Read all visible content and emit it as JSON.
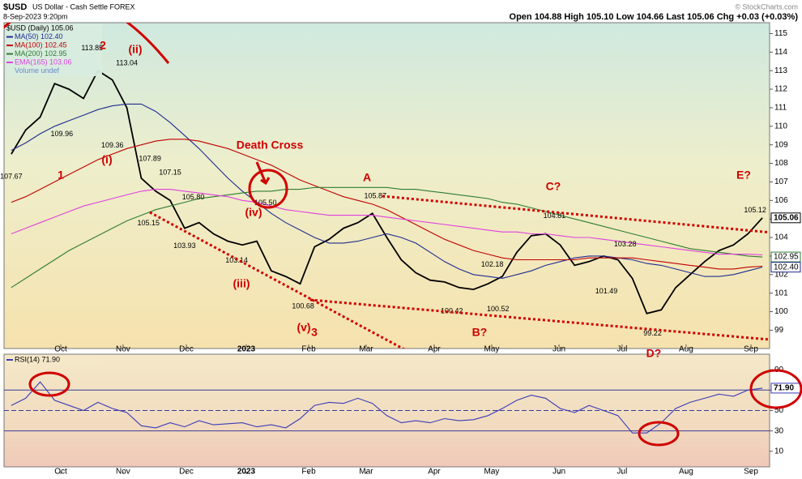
{
  "header": {
    "symbol": "$USD",
    "name": "US Dollar - Cash Settle FOREX",
    "date": "8-Sep-2023 9:20pm",
    "quote": "Open 104.88  High 105.10  Low 104.66  Last 105.06  Chg +0.03 (+0.03%)",
    "credit": "© StockCharts.com"
  },
  "chart_data": [
    {
      "type": "line",
      "panel": "price",
      "x": [
        0,
        1,
        2,
        3,
        4,
        5,
        6,
        7,
        8,
        9,
        10,
        11,
        12,
        13,
        14,
        15,
        16,
        17,
        18,
        19,
        20,
        21,
        22,
        23,
        24,
        25,
        26,
        27,
        28,
        29,
        30,
        31,
        32,
        33,
        34,
        35,
        36,
        37,
        38,
        39,
        40,
        41,
        42,
        43,
        44,
        45,
        46,
        47,
        48,
        49,
        50,
        51,
        52
      ],
      "xlim": [
        -0.5,
        52.5
      ],
      "xticks": [
        {
          "value": 3.43,
          "label": "Oct"
        },
        {
          "value": 7.74,
          "label": "Nov"
        },
        {
          "value": 12.12,
          "label": "Dec"
        },
        {
          "value": 16.27,
          "label": "2023"
        },
        {
          "value": 20.59,
          "label": "Feb"
        },
        {
          "value": 24.57,
          "label": "Mar"
        },
        {
          "value": 29.28,
          "label": "Apr"
        },
        {
          "value": 33.26,
          "label": "May"
        },
        {
          "value": 37.92,
          "label": "Jun"
        },
        {
          "value": 42.29,
          "label": "Jul"
        },
        {
          "value": 46.72,
          "label": "Aug"
        },
        {
          "value": 51.21,
          "label": "Sep"
        }
      ],
      "ylim": [
        98.1,
        115.5
      ],
      "yticks": [
        99,
        100,
        101,
        102,
        103,
        104,
        105,
        106,
        107,
        108,
        109,
        110,
        111,
        112,
        113,
        114,
        115
      ],
      "series": [
        {
          "name": "$USD (Daily) 105.06",
          "color": "#000000",
          "values": [
            108.5,
            109.8,
            110.5,
            112.3,
            112.0,
            111.5,
            113.0,
            112.5,
            111.0,
            107.2,
            106.5,
            106.0,
            104.5,
            104.8,
            104.2,
            103.8,
            103.6,
            103.8,
            102.2,
            101.9,
            101.5,
            103.5,
            103.9,
            104.5,
            104.8,
            105.3,
            104.0,
            102.8,
            102.1,
            101.7,
            101.6,
            101.3,
            101.2,
            101.5,
            101.9,
            103.2,
            104.1,
            104.2,
            103.6,
            102.5,
            102.7,
            103.0,
            102.8,
            101.8,
            99.9,
            100.1,
            101.3,
            102.0,
            102.7,
            103.3,
            103.6,
            104.2,
            105.06
          ]
        },
        {
          "name": "MA(50) 102.40",
          "color": "#1f2c8f",
          "values": [
            108.7,
            109.1,
            109.6,
            110.0,
            110.3,
            110.6,
            110.9,
            111.1,
            111.2,
            111.2,
            110.8,
            110.2,
            109.5,
            108.8,
            108.0,
            107.2,
            106.5,
            105.9,
            105.3,
            104.8,
            104.4,
            104.0,
            103.7,
            103.7,
            103.8,
            104.0,
            104.2,
            104.0,
            103.7,
            103.2,
            102.7,
            102.3,
            102.0,
            101.9,
            101.8,
            102.0,
            102.2,
            102.5,
            102.7,
            102.9,
            103.0,
            103.0,
            102.9,
            102.8,
            102.6,
            102.5,
            102.3,
            102.1,
            101.9,
            101.9,
            102.0,
            102.2,
            102.4
          ]
        },
        {
          "name": "MA(100) 102.45",
          "color": "#c00000",
          "values": [
            105.9,
            106.2,
            106.6,
            107.0,
            107.4,
            107.8,
            108.2,
            108.5,
            108.8,
            109.0,
            109.2,
            109.3,
            109.3,
            109.2,
            109.0,
            108.8,
            108.5,
            108.2,
            107.9,
            107.5,
            107.1,
            106.8,
            106.5,
            106.2,
            106.0,
            105.8,
            105.5,
            105.1,
            104.7,
            104.3,
            103.9,
            103.6,
            103.3,
            103.1,
            102.9,
            102.8,
            102.8,
            102.8,
            102.8,
            102.8,
            102.9,
            102.9,
            102.9,
            102.9,
            102.8,
            102.7,
            102.6,
            102.5,
            102.4,
            102.3,
            102.3,
            102.4,
            102.45
          ]
        },
        {
          "name": "MA(200) 102.95",
          "color": "#2e7d32",
          "values": [
            101.3,
            101.8,
            102.3,
            102.8,
            103.3,
            103.7,
            104.1,
            104.5,
            104.9,
            105.2,
            105.5,
            105.7,
            105.9,
            106.1,
            106.2,
            106.3,
            106.4,
            106.5,
            106.5,
            106.6,
            106.6,
            106.7,
            106.7,
            106.7,
            106.7,
            106.7,
            106.7,
            106.6,
            106.6,
            106.5,
            106.4,
            106.3,
            106.2,
            106.1,
            105.9,
            105.8,
            105.6,
            105.4,
            105.2,
            105.0,
            104.8,
            104.6,
            104.4,
            104.2,
            104.0,
            103.8,
            103.6,
            103.4,
            103.3,
            103.2,
            103.1,
            103.0,
            102.95
          ]
        },
        {
          "name": "EMA(165) 103.06",
          "color": "#e040e0",
          "values": [
            104.2,
            104.5,
            104.8,
            105.1,
            105.4,
            105.7,
            105.9,
            106.1,
            106.3,
            106.5,
            106.6,
            106.6,
            106.5,
            106.4,
            106.3,
            106.2,
            106.0,
            105.9,
            105.7,
            105.5,
            105.4,
            105.3,
            105.2,
            105.2,
            105.2,
            105.2,
            105.1,
            105.0,
            104.9,
            104.8,
            104.7,
            104.6,
            104.5,
            104.4,
            104.3,
            104.3,
            104.2,
            104.2,
            104.1,
            104.0,
            104.0,
            103.9,
            103.8,
            103.7,
            103.6,
            103.5,
            103.4,
            103.3,
            103.2,
            103.1,
            103.1,
            103.1,
            103.06
          ]
        }
      ],
      "legend_extra": "Volume undef",
      "price_tags": [
        {
          "value": 105.06,
          "label": "105.06",
          "color": "#000000"
        },
        {
          "value": 102.95,
          "label": "102.95",
          "color": "#2e7d32"
        },
        {
          "value": 102.4,
          "label": "102.40",
          "color": "#1f2c8f"
        }
      ],
      "point_labels": [
        {
          "x": 0,
          "value": 107.67,
          "label": "107.67"
        },
        {
          "x": 3.5,
          "value": 109.96,
          "label": "109.96"
        },
        {
          "x": 5.6,
          "value": 113.85,
          "label": "113.85"
        },
        {
          "x": 7,
          "value": 109.36,
          "label": "109.36"
        },
        {
          "x": 8,
          "value": 113.04,
          "label": "113.04"
        },
        {
          "x": 9.6,
          "value": 107.89,
          "label": "107.89"
        },
        {
          "x": 11,
          "value": 107.15,
          "label": "107.15"
        },
        {
          "x": 12.6,
          "value": 105.8,
          "label": "105.80"
        },
        {
          "x": 9.5,
          "value": 105.15,
          "label": "105.15"
        },
        {
          "x": 12,
          "value": 103.93,
          "label": "103.93"
        },
        {
          "x": 15.6,
          "value": 103.14,
          "label": "103.14"
        },
        {
          "x": 17.6,
          "value": 105.5,
          "label": "105.50"
        },
        {
          "x": 20.2,
          "value": 100.68,
          "label": "100.68"
        },
        {
          "x": 25.2,
          "value": 105.87,
          "label": "105.87"
        },
        {
          "x": 30.5,
          "value": 100.42,
          "label": "100.42"
        },
        {
          "x": 33.3,
          "value": 102.18,
          "label": "102.18"
        },
        {
          "x": 33.7,
          "value": 100.52,
          "label": "100.52"
        },
        {
          "x": 37.6,
          "value": 104.81,
          "label": "104.81"
        },
        {
          "x": 42.5,
          "value": 103.28,
          "label": "103.28"
        },
        {
          "x": 41.2,
          "value": 101.49,
          "label": "101.49"
        },
        {
          "x": 44.4,
          "value": 99.22,
          "label": "99.22"
        },
        {
          "x": 51.5,
          "value": 105.12,
          "label": "105.12"
        }
      ],
      "annotations": [
        "Death Cross",
        "A",
        "C?",
        "E?",
        "1",
        "(i)",
        "2",
        "(ii)",
        "(iii)",
        "(iv)",
        "(v)",
        "3",
        "B?",
        "D?"
      ]
    },
    {
      "type": "line",
      "panel": "rsi",
      "x": [
        0,
        1,
        2,
        3,
        4,
        5,
        6,
        7,
        8,
        9,
        10,
        11,
        12,
        13,
        14,
        15,
        16,
        17,
        18,
        19,
        20,
        21,
        22,
        23,
        24,
        25,
        26,
        27,
        28,
        29,
        30,
        31,
        32,
        33,
        34,
        35,
        36,
        37,
        38,
        39,
        40,
        41,
        42,
        43,
        44,
        45,
        46,
        47,
        48,
        49,
        50,
        51,
        52
      ],
      "xlim": [
        -0.5,
        52.5
      ],
      "xticks": [
        {
          "value": 3.43,
          "label": "Oct"
        },
        {
          "value": 7.74,
          "label": "Nov"
        },
        {
          "value": 12.12,
          "label": "Dec"
        },
        {
          "value": 16.27,
          "label": "2023"
        },
        {
          "value": 20.59,
          "label": "Feb"
        },
        {
          "value": 24.57,
          "label": "Mar"
        },
        {
          "value": 29.28,
          "label": "Apr"
        },
        {
          "value": 33.26,
          "label": "May"
        },
        {
          "value": 37.92,
          "label": "Jun"
        },
        {
          "value": 42.29,
          "label": "Jul"
        },
        {
          "value": 46.72,
          "label": "Aug"
        },
        {
          "value": 51.21,
          "label": "Sep"
        }
      ],
      "ylim": [
        -12.4,
        105.2
      ],
      "yticks": [
        10,
        30,
        50,
        70,
        90
      ],
      "series": [
        {
          "name": "RSI(14) 71.90",
          "color": "#3a3ab8",
          "values": [
            55,
            62,
            78,
            60,
            55,
            50,
            58,
            52,
            48,
            35,
            33,
            38,
            34,
            40,
            36,
            37,
            38,
            34,
            36,
            33,
            42,
            55,
            58,
            57,
            62,
            57,
            45,
            38,
            40,
            38,
            42,
            40,
            41,
            45,
            52,
            60,
            65,
            62,
            52,
            48,
            55,
            50,
            45,
            28,
            28,
            38,
            52,
            58,
            62,
            66,
            64,
            70,
            71.9
          ]
        }
      ],
      "price_tags": [
        {
          "value": 71.9,
          "label": "71.90",
          "color": "#3a3ab8"
        }
      ]
    }
  ]
}
